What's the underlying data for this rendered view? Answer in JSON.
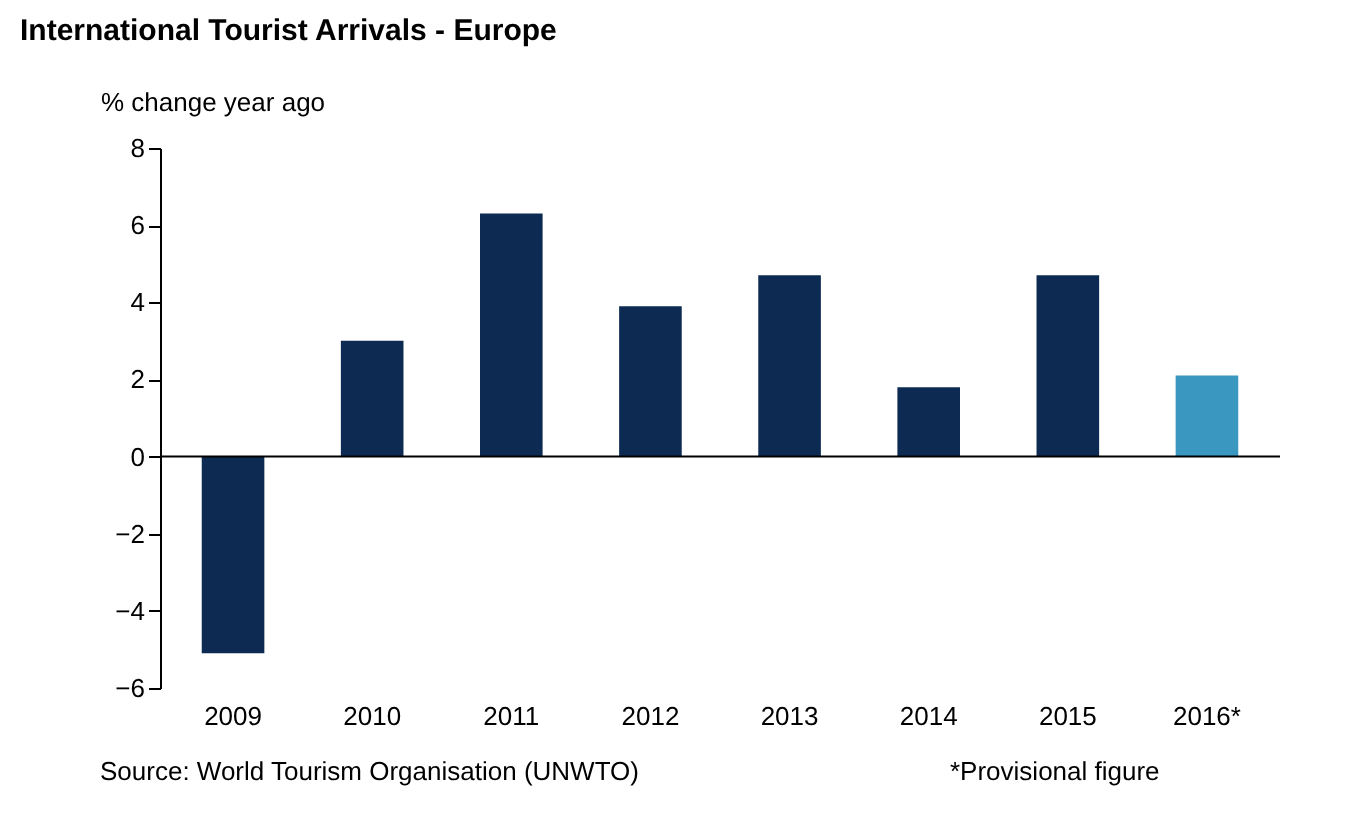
{
  "chart_data": {
    "type": "bar",
    "title": "International Tourist Arrivals - Europe",
    "ylabel": "% change year ago",
    "categories": [
      "2009",
      "2010",
      "2011",
      "2012",
      "2013",
      "2014",
      "2015",
      "2016*"
    ],
    "values": [
      -5.1,
      3.0,
      6.3,
      3.9,
      4.7,
      1.8,
      4.7,
      2.1
    ],
    "colors": [
      "#0d2b52",
      "#0d2b52",
      "#0d2b52",
      "#0d2b52",
      "#0d2b52",
      "#0d2b52",
      "#0d2b52",
      "#3a97bf"
    ],
    "ylim": [
      -6,
      8
    ],
    "yticks": [
      -6,
      -4,
      -2,
      0,
      2,
      4,
      6,
      8
    ],
    "grid": false,
    "ref_lines": [
      {
        "axis": "y",
        "value": 0,
        "color": "#000000"
      }
    ],
    "annotations": [
      "Source: World Tourism Organisation (UNWTO)",
      "*Provisional figure"
    ]
  }
}
